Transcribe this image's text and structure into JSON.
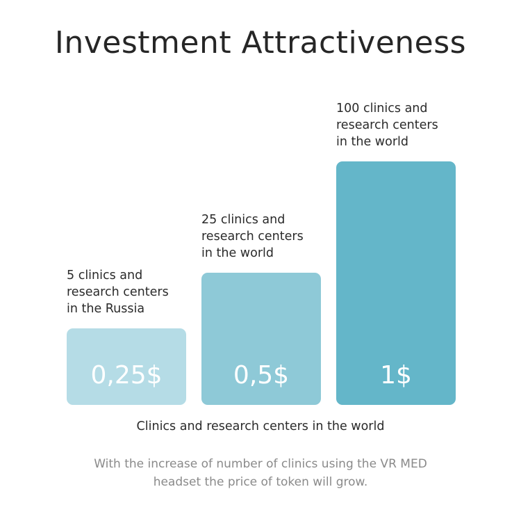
{
  "chart_data": {
    "type": "bar",
    "title": "Investment Attractiveness",
    "xlabel": "Clinics and research centers in the world",
    "ylabel": "",
    "categories": [
      [
        "5 clinics and",
        "research centers",
        "in the Russia"
      ],
      [
        "25 clinics and",
        "research centers",
        "in the world"
      ],
      [
        "100 clinics and",
        "research centers",
        "in the world"
      ]
    ],
    "values": [
      0.25,
      0.5,
      1
    ],
    "value_labels": [
      "0,25$",
      "0,5$",
      "1$"
    ],
    "colors": [
      "#b5dce6",
      "#8ec9d7",
      "#64b6c9"
    ],
    "ylim": [
      0,
      1
    ],
    "grid": false
  },
  "footnote": [
    "With the increase of number of clinics using the VR MED",
    "headset the price of token will grow."
  ]
}
